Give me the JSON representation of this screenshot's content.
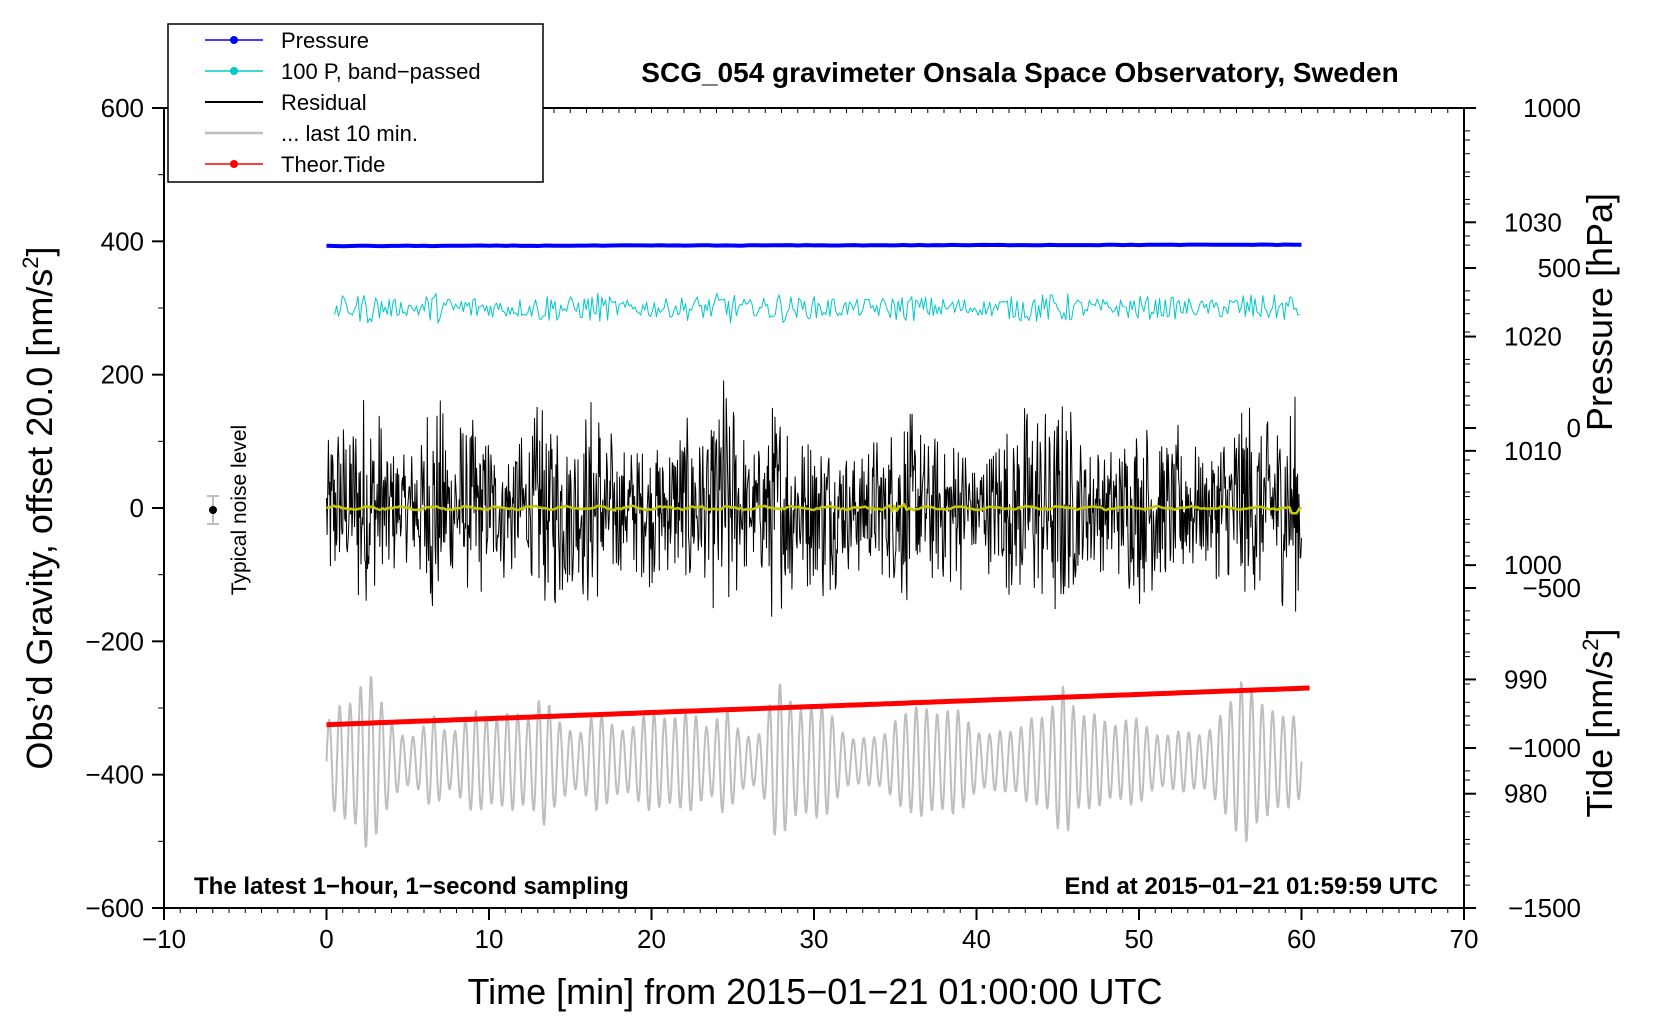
{
  "chart_data": {
    "type": "line",
    "title": "SCG_054 gravimeter Onsala Space Observatory, Sweden",
    "xlabel": "Time [min] from 2015−01−21 01:00:00 UTC",
    "ylabel_left_prefix": "Obs’d Gravity, offset 20.0 [nm/s",
    "ylabel_left_suffix": "]",
    "ylabel_left_sup": "2",
    "ylabel_right_top": "Pressure [hPa]",
    "ylabel_right_bottom_prefix": "Tide [nm/s",
    "ylabel_right_bottom_suffix": "]",
    "ylabel_right_bottom_sup": "2",
    "xlim": [
      -10,
      70
    ],
    "ylim_left": [
      -600,
      600
    ],
    "x_ticks": [
      -10,
      0,
      10,
      20,
      30,
      40,
      50,
      60,
      70
    ],
    "x_tick_labels": [
      "−10",
      "0",
      "10",
      "20",
      "30",
      "40",
      "50",
      "60",
      "70"
    ],
    "y_ticks_left": [
      600,
      400,
      200,
      0,
      -200,
      -400,
      -600
    ],
    "y_tick_labels_left": [
      "600",
      "400",
      "200",
      "0",
      "−200",
      "−400",
      "−600"
    ],
    "pressure_axis": {
      "ticks": [
        1030,
        1020,
        1010,
        1000,
        990,
        980
      ],
      "labels": [
        "1030",
        "1020",
        "1010",
        "1000",
        "990",
        "980"
      ],
      "range": [
        970,
        1040
      ]
    },
    "tide_axis": {
      "ticks": [
        1000,
        500,
        0,
        -500,
        -1000,
        -1500
      ],
      "labels": [
        "1000",
        "500",
        "0",
        "−500",
        "−1000",
        "−1500"
      ],
      "range": [
        -1500,
        1000
      ]
    },
    "legend": [
      {
        "label": "Pressure",
        "color": "#0000ff",
        "marker": true
      },
      {
        "label": "100 P, band−passed",
        "color": "#00c8c8",
        "marker": true
      },
      {
        "label": "Residual",
        "color": "#000000",
        "marker": false
      },
      {
        "label": "... last 10 min.",
        "color": "#bebebe",
        "marker": false
      },
      {
        "label": "Theor.Tide",
        "color": "#ff0000",
        "marker": true
      }
    ],
    "legend_position": "top-left",
    "series": [
      {
        "name": "Pressure",
        "color": "#0000ff",
        "x_range": [
          0,
          60
        ],
        "approx_y_left": [
          393,
          395
        ]
      },
      {
        "name": "100 P, band-passed",
        "color": "#00c8c8",
        "x_range": [
          0,
          60
        ],
        "approx_center": 300,
        "approx_amplitude": 25
      },
      {
        "name": "Residual",
        "color": "#000000",
        "x_range": [
          0,
          60
        ],
        "approx_center": 0,
        "approx_amplitude_range": [
          80,
          240
        ]
      },
      {
        "name": "Residual smoothed",
        "color": "#c8c800",
        "x_range": [
          0,
          60
        ],
        "approx_center": 0
      },
      {
        "name": "... last 10 min.",
        "color": "#bebebe",
        "x_range": [
          0,
          60
        ],
        "approx_center": -380,
        "approx_amplitude_range": [
          40,
          190
        ]
      },
      {
        "name": "Theor.Tide",
        "color": "#ff0000",
        "x_range": [
          0,
          60.5
        ],
        "y_left_start": -325,
        "y_left_end": -270
      }
    ],
    "noise_label": "Typical noise level",
    "noise_marker": {
      "x": -7,
      "y": 0,
      "err": 20
    },
    "annotation_left": "The latest 1−hour, 1−second sampling",
    "annotation_right": "End at 2015−01−21 01:59:59 UTC"
  },
  "colors": {
    "pressure": "#0000ff",
    "bandpassed": "#00c8c8",
    "residual": "#000000",
    "residual_smooth": "#c8c800",
    "last10": "#bebebe",
    "tide": "#ff0000"
  }
}
